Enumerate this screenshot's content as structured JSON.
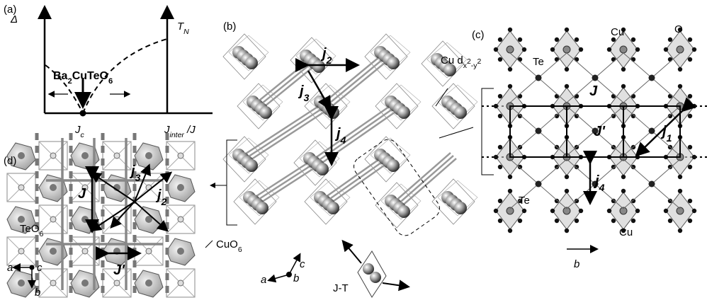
{
  "panel_a": {
    "label": "(a)",
    "delta": "Δ",
    "tn": [
      {
        "t": "T"
      },
      {
        "t": "N",
        "shift": "sub"
      }
    ],
    "compound": [
      {
        "t": "Ba"
      },
      {
        "t": "2",
        "shift": "sub"
      },
      {
        "t": "CuTeO"
      },
      {
        "t": "6",
        "shift": "sub"
      }
    ],
    "jc": [
      {
        "t": "J"
      },
      {
        "t": "c",
        "shift": "sub"
      }
    ],
    "x_axis": [
      {
        "t": "J"
      },
      {
        "t": "inter",
        "shift": "sub"
      },
      {
        "t": " /J"
      }
    ]
  },
  "panel_b": {
    "label": "(b)",
    "j2": [
      {
        "t": "j"
      },
      {
        "t": "2",
        "shift": "sub"
      }
    ],
    "j3": [
      {
        "t": "j"
      },
      {
        "t": "3",
        "shift": "sub"
      }
    ],
    "j4": [
      {
        "t": "j"
      },
      {
        "t": "4",
        "shift": "sub"
      }
    ],
    "orbital": [
      {
        "t": "Cu d"
      },
      {
        "t": "x",
        "shift": "sub"
      },
      {
        "t": "2",
        "shift": "sup"
      },
      {
        "t": "-y",
        "shift": "sub"
      },
      {
        "t": "2",
        "shift": "sup"
      }
    ],
    "axis_c": "c",
    "axis_a": "a",
    "axis_b": "b",
    "jt": "J-T"
  },
  "panel_c": {
    "label": "(c)",
    "cu_top": "Cu",
    "o": "O",
    "te_top": "Te",
    "J": "J",
    "Jp": "J'",
    "j1": [
      {
        "t": "j"
      },
      {
        "t": "1",
        "shift": "sub"
      }
    ],
    "j4": [
      {
        "t": "j"
      },
      {
        "t": "4",
        "shift": "sub"
      }
    ],
    "te_bottom": "Te",
    "cu_bottom": "Cu",
    "axis_b": "b"
  },
  "panel_d": {
    "label": "(d)",
    "J": "J",
    "j3": [
      {
        "t": "j"
      },
      {
        "t": "3",
        "shift": "sub"
      }
    ],
    "j2": [
      {
        "t": "j"
      },
      {
        "t": "2",
        "shift": "sub"
      }
    ],
    "teo6": [
      {
        "t": "TeO"
      },
      {
        "t": "6",
        "shift": "sub"
      }
    ],
    "Jp": "J'",
    "cuo6": [
      {
        "t": "CuO"
      },
      {
        "t": "6",
        "shift": "sub"
      }
    ],
    "axis_a": "a",
    "axis_c": "c",
    "axis_b": "b"
  }
}
